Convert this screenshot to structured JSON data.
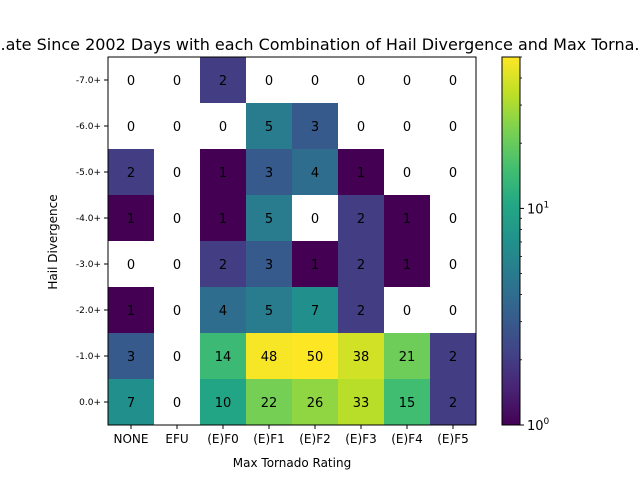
{
  "chart_data": {
    "type": "heatmap",
    "title": "...ate Since 2002 Days with each Combination of Hail Divergence and Max Torna...",
    "xlabel": "Max Tornado Rating",
    "ylabel": "Hail Divergence",
    "x_categories": [
      "NONE",
      "EFU",
      "(E)F0",
      "(E)F1",
      "(E)F2",
      "(E)F3",
      "(E)F4",
      "(E)F5"
    ],
    "y_categories": [
      "-7.0+",
      "-6.0+",
      "-5.0+",
      "-4.0+",
      "-3.0+",
      "-2.0+",
      "-1.0+",
      "0.0+"
    ],
    "values": [
      [
        0,
        0,
        2,
        0,
        0,
        0,
        0,
        0
      ],
      [
        0,
        0,
        0,
        5,
        3,
        0,
        0,
        0
      ],
      [
        2,
        0,
        1,
        3,
        4,
        1,
        0,
        0
      ],
      [
        1,
        0,
        1,
        5,
        0,
        2,
        1,
        0
      ],
      [
        0,
        0,
        2,
        3,
        1,
        2,
        1,
        0
      ],
      [
        1,
        0,
        4,
        5,
        7,
        2,
        0,
        0
      ],
      [
        3,
        0,
        14,
        48,
        50,
        38,
        21,
        2
      ],
      [
        7,
        0,
        10,
        22,
        26,
        33,
        15,
        2
      ]
    ],
    "colorbar": {
      "scale": "log",
      "colormap": "viridis",
      "vmin": 1,
      "vmax": 50,
      "tick_labels": [
        {
          "value": 1,
          "label": "10^0"
        },
        {
          "value": 10,
          "label": "10^1"
        }
      ]
    },
    "zero_color": "#ffffff"
  }
}
